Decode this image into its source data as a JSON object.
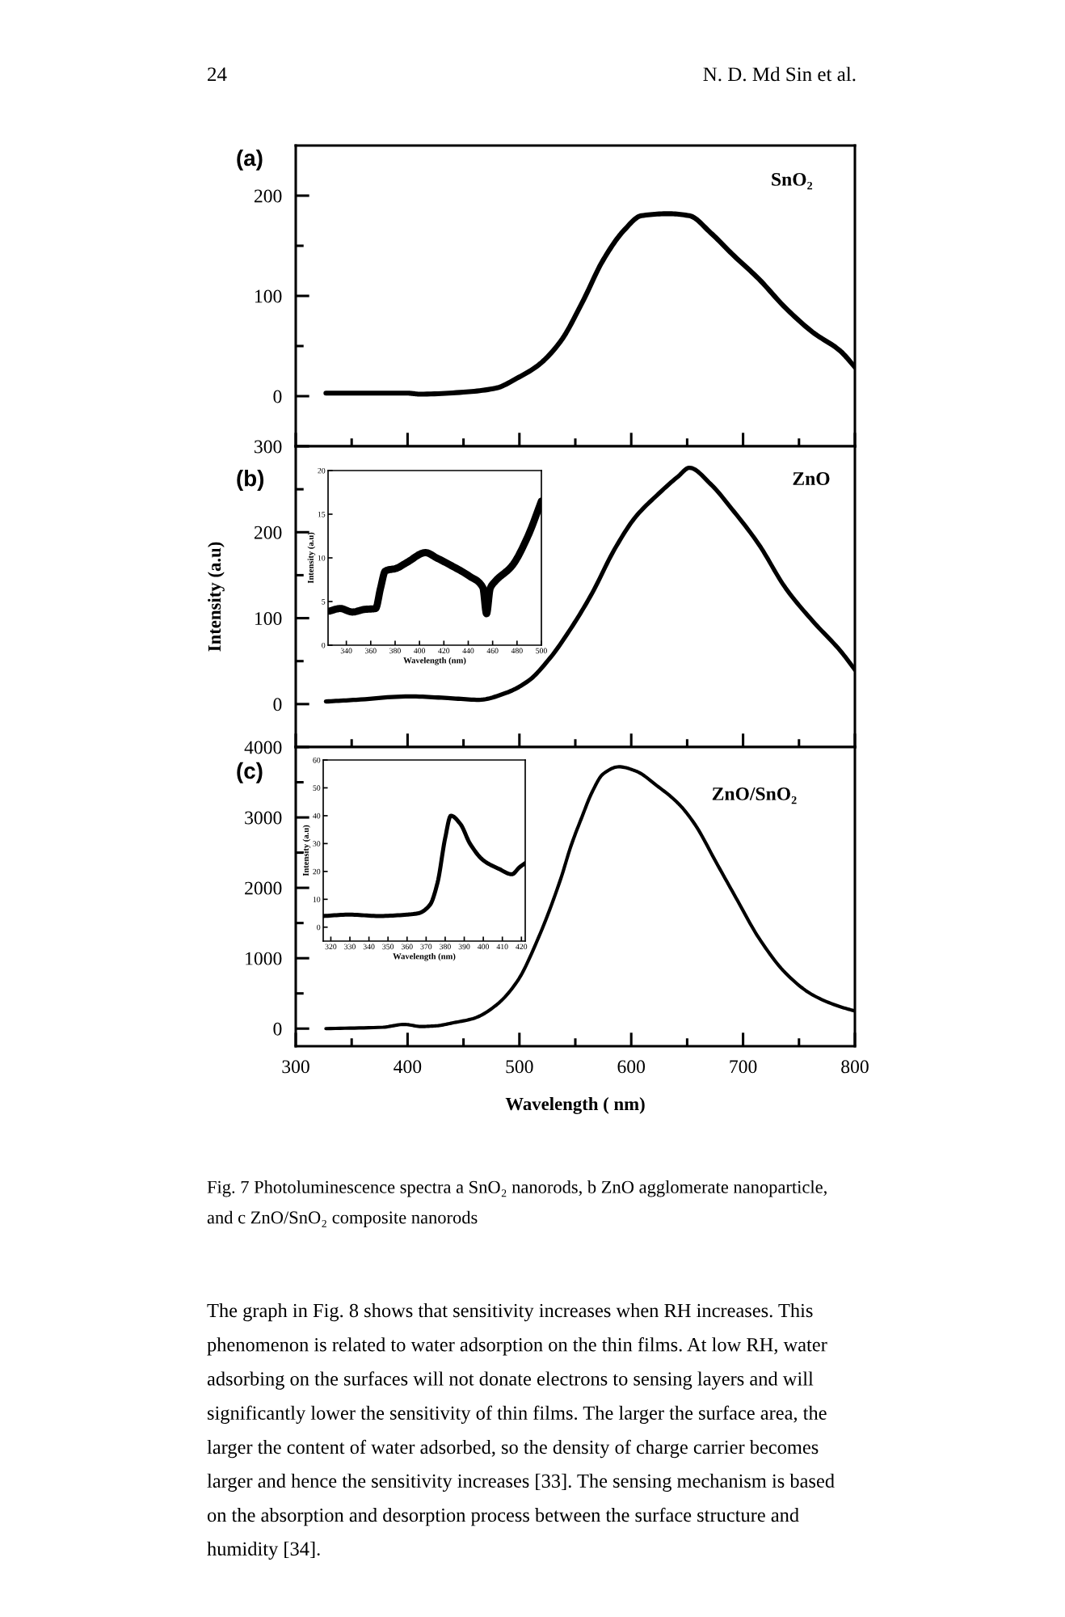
{
  "chart_data": [
    {
      "type": "line",
      "title": "(a)",
      "annotations": [
        "24",
        "N. D. Md Sin et al.",
        "SnO₂"
      ],
      "x": [
        327,
        360,
        400,
        411,
        450,
        479,
        498,
        517,
        537,
        556,
        575,
        594,
        609,
        633,
        652,
        671,
        690,
        714,
        738,
        762,
        787,
        800
      ],
      "series": [
        {
          "color": "#000000",
          "values": [
            3,
            3,
            3,
            2,
            4,
            8,
            18,
            31,
            55,
            93,
            136,
            166,
            180,
            182,
            180,
            163,
            142,
            117,
            88,
            64,
            45,
            29
          ]
        }
      ],
      "xlim": [
        300,
        800
      ],
      "xticks": [
        300,
        {
          "value": 350,
          "label": null
        },
        400,
        {
          "value": 450,
          "label": null
        },
        500,
        {
          "value": 550,
          "label": null
        },
        600,
        {
          "value": 650,
          "label": null
        },
        700,
        {
          "value": 750,
          "label": null
        },
        800
      ],
      "ylim": [
        -50,
        250
      ],
      "yticks": [
        0,
        {
          "value": 50,
          "label": null
        },
        100,
        {
          "value": 150,
          "label": null
        },
        200
      ],
      "tick_labels": "y"
    },
    {
      "type": "line",
      "title": "(b)",
      "ylabel": "Intensity (a.u)",
      "annotations": [
        "ZnO"
      ],
      "x": [
        327,
        354,
        402,
        436,
        464,
        488,
        508,
        527,
        546,
        565,
        585,
        604,
        623,
        642,
        652,
        671,
        690,
        714,
        738,
        762,
        787,
        800
      ],
      "series": [
        {
          "color": "#000000",
          "values": [
            3,
            5,
            9,
            7,
            5,
            13,
            27,
            53,
            88,
            129,
            180,
            218,
            243,
            265,
            275,
            256,
            227,
            186,
            135,
            97,
            62,
            40
          ]
        }
      ],
      "xlim": [
        300,
        800
      ],
      "xticks": [
        300,
        {
          "value": 350,
          "label": null
        },
        400,
        {
          "value": 450,
          "label": null
        },
        500,
        {
          "value": 550,
          "label": null
        },
        600,
        {
          "value": 650,
          "label": null
        },
        700,
        {
          "value": 750,
          "label": null
        },
        800
      ],
      "ylim": [
        -50,
        300
      ],
      "yticks": [
        0,
        {
          "value": 50,
          "label": null
        },
        100,
        {
          "value": 150,
          "label": null
        },
        200,
        {
          "value": 250,
          "label": null
        },
        300
      ],
      "tick_labels": "y"
    },
    {
      "type": "line",
      "xlabel": "Wavelength (nm)",
      "ylabel": "Intensity (a.u)",
      "x": [
        326,
        335,
        345,
        355,
        364,
        368,
        372,
        381,
        390,
        405,
        414,
        425,
        441,
        452,
        455,
        458,
        462,
        476,
        489,
        500
      ],
      "series": [
        {
          "color": "#000000",
          "values": [
            3.9,
            4.2,
            3.8,
            4.1,
            4.2,
            6.5,
            8.5,
            8.8,
            9.5,
            10.6,
            10.0,
            9.2,
            7.9,
            6.6,
            3.6,
            6.5,
            7.3,
            9.1,
            12.5,
            16.5
          ]
        }
      ],
      "xlim": [
        325,
        500
      ],
      "xticks": [
        340,
        360,
        380,
        400,
        420,
        440,
        460,
        480,
        500
      ],
      "ylim": [
        0,
        20
      ],
      "yticks": [
        0,
        5,
        10,
        15,
        20
      ]
    },
    {
      "type": "line",
      "title": "(c)",
      "xlabel": "Wavelength ( nm)",
      "annotations": [
        "ZnO/SnO₂",
        "Fig. 7 Photoluminescence spectra a SnO₂ nanorods, b ZnO agglomerate nanoparticle, and c ZnO/SnO₂ composite nanorods",
        "The graph in Fig. 8 shows that sensitivity increases when RH increases. This phenomenon is related to water adsorption on the thin films. At low RH, water adsorbing on the surfaces will not donate electrons to sensing layers and will significantly lower the sensitivity of thin films. The larger the surface area, the larger the content of water adsorbed, so the density of charge carrier becomes larger and hence the sensitivity increases [33]. The sensing mechanism is based on the absorption and desorption process between the surface structure and humidity [34]."
      ],
      "x": [
        327,
        378,
        397,
        412,
        426,
        440,
        460,
        479,
        498,
        517,
        537,
        546,
        556,
        565,
        575,
        589,
        604,
        623,
        642,
        657,
        676,
        695,
        714,
        738,
        762,
        787,
        800
      ],
      "series": [
        {
          "color": "#000000",
          "values": [
            0,
            20,
            60,
            30,
            40,
            80,
            150,
            330,
            670,
            1290,
            2130,
            2590,
            3010,
            3360,
            3620,
            3720,
            3660,
            3450,
            3200,
            2900,
            2360,
            1820,
            1290,
            790,
            480,
            310,
            250
          ]
        }
      ],
      "xlim": [
        300,
        800
      ],
      "xticks": [
        300,
        {
          "value": 350,
          "label": null
        },
        400,
        {
          "value": 450,
          "label": null
        },
        500,
        {
          "value": 550,
          "label": null
        },
        600,
        {
          "value": 650,
          "label": null
        },
        700,
        {
          "value": 750,
          "label": null
        },
        800
      ],
      "ylim": [
        -250,
        4000
      ],
      "yticks": [
        0,
        {
          "value": 500,
          "label": null
        },
        1000,
        {
          "value": 1500,
          "label": null
        },
        2000,
        {
          "value": 2500,
          "label": null
        },
        3000,
        {
          "value": 3500,
          "label": null
        },
        4000
      ]
    },
    {
      "type": "line",
      "xlabel": "Wavelength (nm)",
      "ylabel": "Intensity (a.u)",
      "x": [
        316,
        330,
        345,
        360,
        366,
        372,
        376,
        380,
        383,
        388,
        393,
        400,
        408,
        415,
        419,
        422
      ],
      "series": [
        {
          "color": "#000000",
          "values": [
            4,
            4.5,
            4,
            4.5,
            5,
            8,
            16,
            32,
            40,
            37,
            30,
            24,
            21,
            19,
            21.5,
            23
          ]
        }
      ],
      "xlim": [
        316,
        422
      ],
      "xticks": [
        320,
        330,
        340,
        350,
        360,
        370,
        380,
        390,
        400,
        410,
        420
      ],
      "ylim": [
        -5,
        60
      ],
      "yticks": [
        0,
        10,
        20,
        30,
        40,
        50,
        60
      ]
    }
  ]
}
